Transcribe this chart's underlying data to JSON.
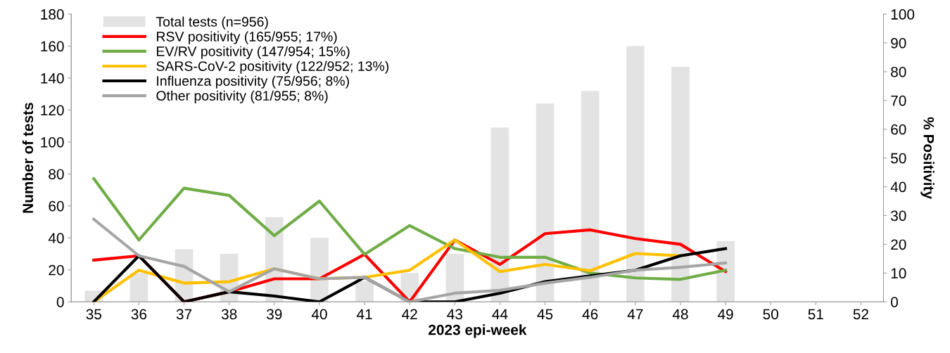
{
  "chart_data": {
    "type": "bar",
    "xlabel": "2023 epi-week",
    "ylabel": "Number of tests",
    "y2label": "% Positivity",
    "categories": [
      "35",
      "36",
      "37",
      "38",
      "39",
      "40",
      "41",
      "42",
      "43",
      "44",
      "45",
      "46",
      "47",
      "48",
      "49",
      "50",
      "51",
      "52"
    ],
    "series": [
      {
        "name": "Total tests (n=956)",
        "color": "#e3e3e3",
        "values": [
          7,
          18,
          33,
          30,
          53,
          40,
          13,
          18,
          30,
          109,
          124,
          132,
          160,
          147,
          38,
          null,
          null,
          null
        ]
      },
      {
        "name": "RSV positivity (165/955; 17%)",
        "type": "line",
        "axis": "y2",
        "color": "#ff0000",
        "values": [
          14.5,
          16,
          0,
          3.5,
          8,
          8,
          16.5,
          0,
          21.5,
          13,
          23.7,
          25,
          22,
          20,
          10.5,
          null,
          null,
          null
        ]
      },
      {
        "name": "EV/RV positivity (147/954; 15%)",
        "type": "line",
        "axis": "y2",
        "color": "#70ad47",
        "values": [
          42.8,
          21.5,
          39.5,
          37,
          23,
          35,
          16.5,
          26.5,
          18.5,
          15.5,
          15.5,
          10,
          8.3,
          7.8,
          11,
          null,
          null,
          null
        ]
      },
      {
        "name": "SARS-CoV-2 positivity (122/952; 13%)",
        "type": "line",
        "axis": "y2",
        "color": "#ffc000",
        "values": [
          0,
          11,
          6.5,
          7,
          11.5,
          8,
          8.5,
          11,
          21.5,
          10.5,
          13,
          10.8,
          16.8,
          16,
          null,
          null,
          null,
          null
        ]
      },
      {
        "name": "Influenza positivity (75/956; 8%)",
        "type": "line",
        "axis": "y2",
        "color": "#000000",
        "values": [
          0,
          16,
          0,
          3.5,
          2,
          0,
          8.5,
          0,
          0,
          3,
          7,
          9,
          11,
          16,
          18.5,
          null,
          null,
          null
        ]
      },
      {
        "name": "Other positivity (81/955; 8%)",
        "type": "line",
        "axis": "y2",
        "color": "#a5a5a5",
        "values": [
          28.7,
          16,
          12.3,
          3.5,
          11.5,
          8,
          8.5,
          0,
          3,
          4,
          6.5,
          8.5,
          11,
          12,
          13.5,
          null,
          null,
          null
        ]
      }
    ],
    "ylim": [
      0,
      180
    ],
    "yticks": [
      0,
      20,
      40,
      60,
      80,
      100,
      120,
      140,
      160,
      180
    ],
    "y2lim": [
      0,
      100
    ],
    "y2ticks": [
      0,
      10,
      20,
      30,
      40,
      50,
      60,
      70,
      80,
      90,
      100
    ],
    "grid": false,
    "legend": "top left",
    "line_style": "solid",
    "marker": "none"
  }
}
